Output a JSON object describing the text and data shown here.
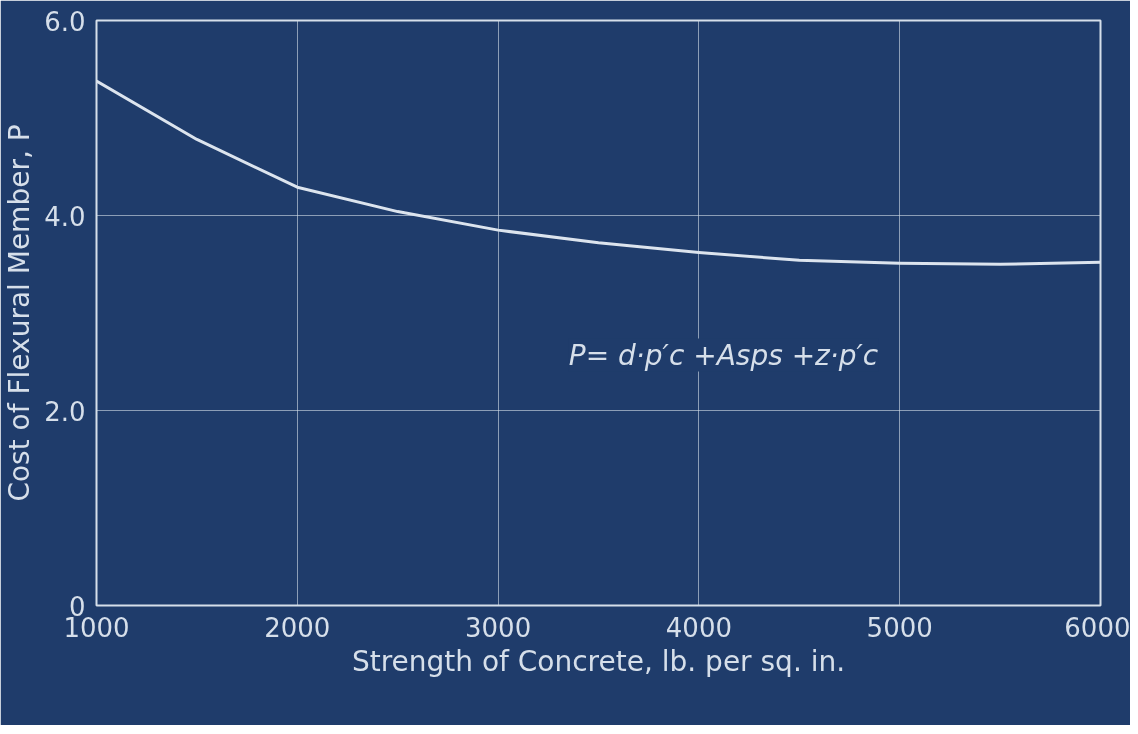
{
  "chart_data": {
    "type": "line",
    "xlabel": "Strength of Concrete, lb. per sq. in.",
    "ylabel": "Cost of Flexural Member, P",
    "x": [
      1000,
      1500,
      2000,
      2500,
      3000,
      3500,
      4000,
      4500,
      5000,
      5500,
      6000
    ],
    "series": [
      {
        "color": "#dce4ee",
        "values": [
          5.38,
          4.78,
          4.29,
          4.04,
          3.85,
          3.72,
          3.62,
          3.54,
          3.51,
          3.5,
          3.52
        ]
      }
    ],
    "xlim": [
      1000,
      6000
    ],
    "ylim": [
      0,
      6
    ],
    "xticks": [
      1000,
      2000,
      3000,
      4000,
      5000,
      6000
    ],
    "yticks": [
      0,
      {
        "value": 2,
        "label": "2.0"
      },
      {
        "value": 4,
        "label": "4.0"
      },
      {
        "value": 6,
        "label": "6.0"
      }
    ],
    "grid": true,
    "marker": "none",
    "line_style": "solid",
    "annotations": [
      "P= d·p′c +Asps +z·p′c"
    ]
  }
}
